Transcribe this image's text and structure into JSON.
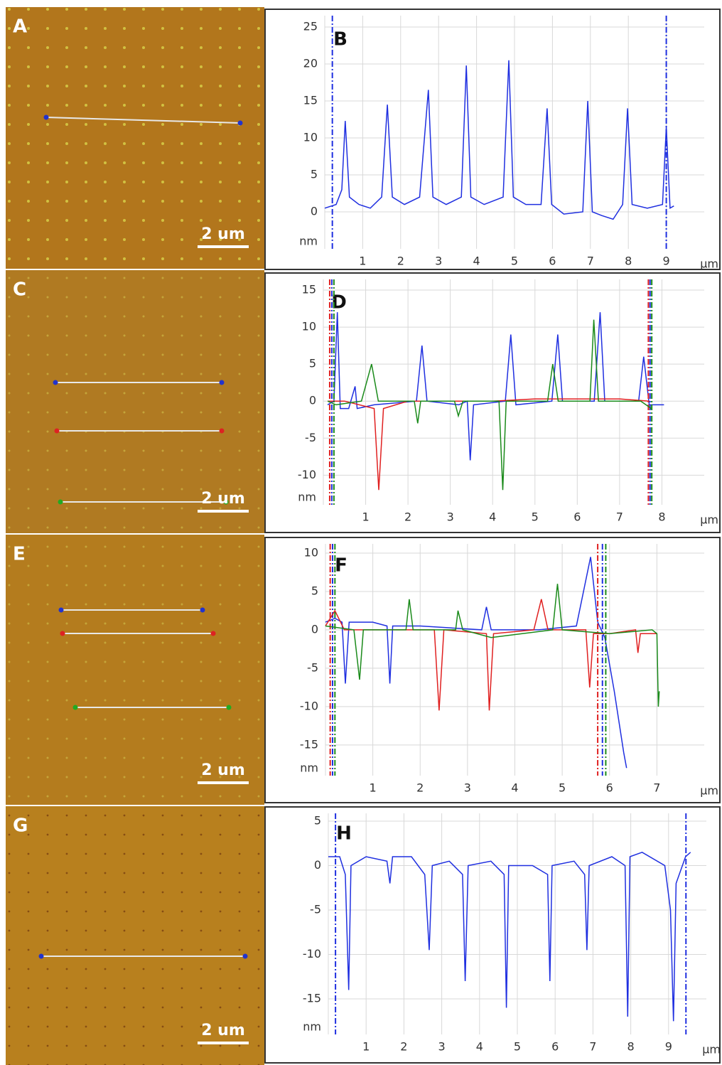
{
  "images": [
    {
      "label": "A",
      "scale": "2 um"
    },
    {
      "label": "C",
      "scale": "2 um"
    },
    {
      "label": "E",
      "scale": "2 um"
    },
    {
      "label": "G",
      "scale": "2 um"
    }
  ],
  "chart_data": [
    {
      "type": "line",
      "title": "B",
      "x_label": "µm",
      "y_label": "nm",
      "xlim": [
        0,
        10
      ],
      "ylim": [
        -5,
        25
      ],
      "xticks": [
        1,
        2,
        3,
        4,
        5,
        6,
        7,
        8,
        9
      ],
      "yticks": [
        0,
        5,
        10,
        15,
        20,
        25
      ],
      "grid": true,
      "series": [
        {
          "color": "#1f2fe0",
          "cursors": [
            0.2,
            9.0
          ],
          "x": [
            0,
            0.3,
            0.45,
            0.54,
            0.65,
            0.9,
            1.2,
            1.5,
            1.65,
            1.78,
            2.1,
            2.5,
            2.73,
            2.85,
            3.2,
            3.6,
            3.73,
            3.85,
            4.2,
            4.7,
            4.85,
            4.97,
            5.3,
            5.7,
            5.86,
            5.98,
            6.3,
            6.8,
            6.93,
            7.05,
            7.3,
            7.6,
            7.85,
            7.98,
            8.1,
            8.5,
            8.9,
            9.0,
            9.1,
            9.2
          ],
          "values": [
            0.5,
            1,
            3,
            12.3,
            2,
            1,
            0.5,
            2,
            14.5,
            2,
            1,
            2,
            16.5,
            2,
            1,
            2,
            19.8,
            2,
            1,
            2,
            20.5,
            2,
            1,
            1,
            14,
            1,
            -0.3,
            0,
            15,
            0,
            -0.5,
            -1,
            1,
            14,
            1,
            0.5,
            1,
            11.5,
            0.5,
            0.8
          ]
        }
      ]
    },
    {
      "type": "line",
      "title": "D",
      "x_label": "µm",
      "y_label": "nm",
      "xlim": [
        0,
        9
      ],
      "ylim": [
        -14,
        15
      ],
      "xticks": [
        1,
        2,
        3,
        4,
        5,
        6,
        7,
        8
      ],
      "yticks": [
        -10,
        -5,
        0,
        5,
        10,
        15
      ],
      "grid": true,
      "series": [
        {
          "color": "#1f2fe0",
          "cursors": [
            0.2,
            7.72
          ],
          "x": [
            0.1,
            0.25,
            0.33,
            0.4,
            0.6,
            0.75,
            0.8,
            1.2,
            2.2,
            2.33,
            2.45,
            3.2,
            3.4,
            3.47,
            3.55,
            4.3,
            4.43,
            4.55,
            5.4,
            5.54,
            5.65,
            6.4,
            6.54,
            6.65,
            7.45,
            7.57,
            7.7,
            8.05
          ],
          "values": [
            -0.5,
            0,
            12,
            -1,
            -1,
            2,
            -1,
            -0.5,
            0,
            7.5,
            0,
            -0.5,
            0,
            -8,
            -0.5,
            0,
            9,
            -0.5,
            0,
            9,
            0,
            0,
            12,
            0,
            0,
            6,
            -0.5,
            -0.5
          ]
        },
        {
          "color": "#e02020",
          "cursors": [
            0.15,
            7.68
          ],
          "x": [
            0.1,
            0.5,
            1.2,
            1.31,
            1.42,
            2,
            3,
            4,
            5,
            6,
            7,
            7.7
          ],
          "values": [
            0,
            0,
            -1,
            -12,
            -1,
            0,
            0,
            0,
            0.3,
            0.3,
            0.3,
            0
          ]
        },
        {
          "color": "#1a8a1a",
          "cursors": [
            0.25,
            7.76
          ],
          "x": [
            0.1,
            0.3,
            0.9,
            1.14,
            1.3,
            2.15,
            2.23,
            2.3,
            3.1,
            3.19,
            3.3,
            4.15,
            4.24,
            4.32,
            5.3,
            5.42,
            5.55,
            6.3,
            6.39,
            6.5,
            7.5,
            7.75
          ],
          "values": [
            0,
            -0.5,
            0,
            5,
            0,
            0,
            -3,
            0,
            0,
            -2,
            0,
            0,
            -12,
            0,
            0,
            5,
            0,
            0,
            11,
            0,
            0,
            -1
          ]
        }
      ]
    },
    {
      "type": "line",
      "title": "F",
      "x_label": "µm",
      "y_label": "nm",
      "xlim": [
        0,
        8
      ],
      "ylim": [
        -19,
        10
      ],
      "xticks": [
        1,
        2,
        3,
        4,
        5,
        6,
        7
      ],
      "yticks": [
        -15,
        -10,
        -5,
        0,
        5,
        10
      ],
      "grid": true,
      "series": [
        {
          "color": "#1f2fe0",
          "cursors": [
            0.15,
            5.85
          ],
          "x": [
            0,
            0.2,
            0.35,
            0.42,
            0.5,
            1,
            1.3,
            1.36,
            1.42,
            2,
            3.3,
            3.4,
            3.5,
            4.5,
            5.3,
            5.6,
            5.75,
            5.9,
            6.1,
            6.3,
            6.36
          ],
          "values": [
            1,
            1.5,
            1,
            -7,
            1,
            1,
            0.5,
            -7,
            0.5,
            0.5,
            0,
            3,
            0,
            0,
            0.5,
            9.5,
            1,
            -1,
            -8,
            -16,
            -18
          ]
        },
        {
          "color": "#e02020",
          "cursors": [
            0.1,
            5.75
          ],
          "x": [
            0,
            0.2,
            0.4,
            1,
            2.3,
            2.4,
            2.5,
            3.4,
            3.46,
            3.55,
            4.4,
            4.56,
            4.7,
            5.5,
            5.58,
            5.66,
            6,
            6.55,
            6.6,
            6.65,
            7.0
          ],
          "values": [
            0.5,
            2.5,
            0,
            0,
            0,
            -10.5,
            0,
            -0.5,
            -10.5,
            -0.5,
            0,
            4,
            0,
            0,
            -7.5,
            -0.5,
            -0.5,
            0,
            -3,
            -0.5,
            -0.5
          ]
        },
        {
          "color": "#1a8a1a",
          "cursors": [
            0.2,
            5.92
          ],
          "x": [
            0,
            0.6,
            0.72,
            0.8,
            1.7,
            1.77,
            1.85,
            2.75,
            2.8,
            2.9,
            3.5,
            4.8,
            4.9,
            5.0,
            6,
            6.9,
            7.0,
            7.03,
            7.05
          ],
          "values": [
            0.5,
            0,
            -6.5,
            0,
            0,
            4,
            0,
            0,
            2.5,
            0,
            -1,
            0,
            6,
            0,
            -0.5,
            0,
            -0.5,
            -10,
            -8
          ]
        }
      ]
    },
    {
      "type": "line",
      "title": "H",
      "x_label": "µm",
      "y_label": "nm",
      "xlim": [
        0,
        10
      ],
      "ylim": [
        -19,
        5
      ],
      "xticks": [
        1,
        2,
        3,
        4,
        5,
        6,
        7,
        8,
        9
      ],
      "yticks": [
        -15,
        -10,
        -5,
        0,
        5
      ],
      "grid": true,
      "series": [
        {
          "color": "#1f2fe0",
          "cursors": [
            0.19,
            9.46
          ],
          "x": [
            0,
            0.3,
            0.45,
            0.54,
            0.6,
            1,
            1.55,
            1.63,
            1.7,
            2.2,
            2.55,
            2.67,
            2.75,
            3.2,
            3.55,
            3.62,
            3.7,
            4.3,
            4.65,
            4.71,
            4.77,
            5.4,
            5.8,
            5.86,
            5.92,
            6.5,
            6.78,
            6.84,
            6.9,
            7.5,
            7.85,
            7.92,
            7.98,
            8.3,
            8.9,
            9.05,
            9.13,
            9.2,
            9.45,
            9.58
          ],
          "values": [
            1,
            1,
            -1,
            -14,
            0,
            1,
            0.5,
            -2,
            1,
            1,
            -1,
            -9.5,
            0,
            0.5,
            -1,
            -13,
            0,
            0.5,
            -1,
            -16,
            0,
            0,
            -1,
            -13,
            0,
            0.5,
            -1,
            -9.5,
            0,
            1,
            0,
            -17,
            1,
            1.5,
            0,
            -5,
            -17.5,
            -2,
            1,
            1.5
          ]
        }
      ]
    }
  ]
}
